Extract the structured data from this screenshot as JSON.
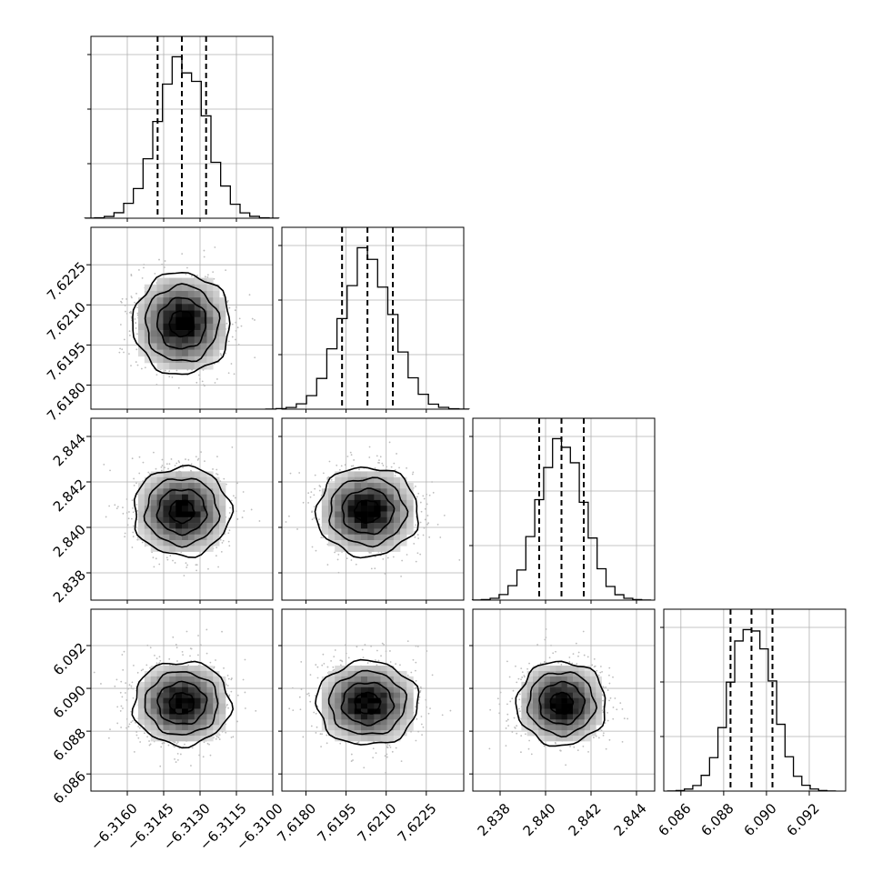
{
  "chart_data": {
    "type": "corner",
    "parameters": [
      {
        "index": 0,
        "median": -6.31375,
        "sigma": 0.001,
        "quantiles": [
          -6.31475,
          -6.31375,
          -6.31275
        ],
        "range": [
          -6.3175,
          -6.31
        ],
        "ticks": [
          -6.316,
          -6.3145,
          -6.313,
          -6.3115,
          -6.31
        ],
        "tick_labels": [
          "−6.3160",
          "−6.3145",
          "−6.3130",
          "−6.3115",
          "−6.3100"
        ]
      },
      {
        "index": 1,
        "median": 7.6203,
        "sigma": 0.00095,
        "quantiles": [
          7.61935,
          7.6203,
          7.62125
        ],
        "range": [
          7.6171,
          7.6239
        ],
        "ticks": [
          7.618,
          7.6195,
          7.621,
          7.6225
        ],
        "tick_labels": [
          "7.6180",
          "7.6195",
          "7.6210",
          "7.6225"
        ]
      },
      {
        "index": 2,
        "median": 2.8407,
        "sigma": 0.00098,
        "quantiles": [
          2.83972,
          2.8407,
          2.84168
        ],
        "range": [
          2.8368,
          2.8448
        ],
        "ticks": [
          2.838,
          2.84,
          2.842,
          2.844
        ],
        "tick_labels": [
          "2.838",
          "2.840",
          "2.842",
          "2.844"
        ]
      },
      {
        "index": 3,
        "median": 6.0893,
        "sigma": 0.00098,
        "quantiles": [
          6.08832,
          6.0893,
          6.09028
        ],
        "range": [
          6.0852,
          6.0937
        ],
        "ticks": [
          6.086,
          6.088,
          6.09,
          6.092
        ],
        "tick_labels": [
          "6.086",
          "6.088",
          "6.090",
          "6.092"
        ]
      }
    ],
    "histogram_bins": 20,
    "contour_levels_sigma": [
      0.5,
      1.0,
      1.5,
      2.0
    ],
    "grid": true,
    "colors": {
      "line": "#000000",
      "grid": "#b0b0b0",
      "density_max": "#000000",
      "density_min": "#ffffff",
      "scatter": "#bdbdbd"
    }
  }
}
